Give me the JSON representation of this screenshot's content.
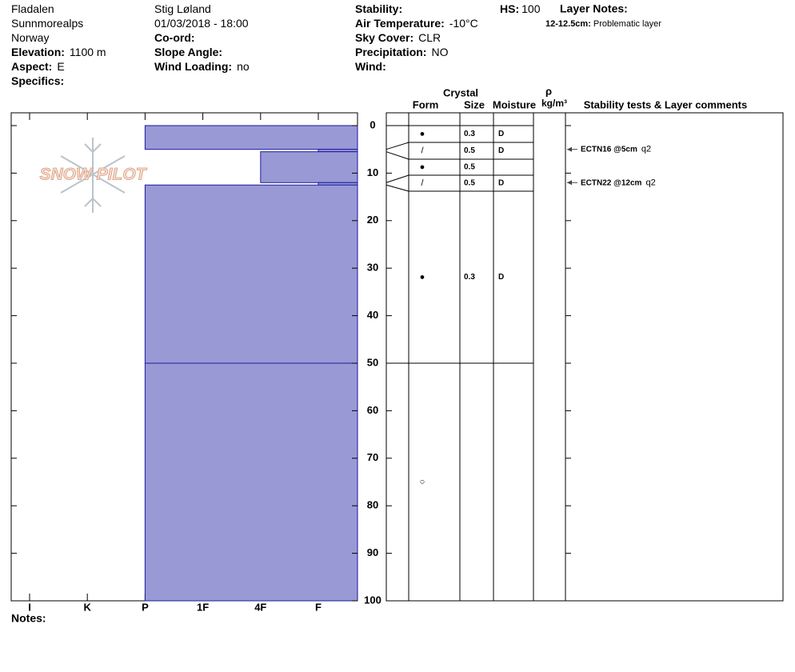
{
  "header": {
    "columns": [
      [
        {
          "value": "Fladalen"
        },
        {
          "value": "Sunnmorealps"
        },
        {
          "value": "Norway"
        },
        {
          "label": "Elevation:",
          "value": "1100 m"
        },
        {
          "label": "Aspect:",
          "value": "E"
        },
        {
          "label": "Specifics:"
        }
      ],
      [
        {
          "value": "Stig Løland"
        },
        {
          "value": "01/03/2018 - 18:00"
        },
        {
          "label": "Co-ord:"
        },
        {
          "label": "Slope Angle:"
        },
        {
          "label": "Wind Loading:",
          "value": "no"
        }
      ],
      [
        {
          "label": "Stability:"
        },
        {
          "label": "Air Temperature:",
          "value": "-10°C"
        },
        {
          "label": "Sky Cover:",
          "value": "CLR"
        },
        {
          "label": "Precipitation:",
          "value": "NO"
        },
        {
          "label": "Wind:"
        }
      ]
    ],
    "hs": {
      "label": "HS:",
      "value": 100
    },
    "layer_notes": {
      "title": "Layer Notes:",
      "items": [
        {
          "depth": "12-12.5cm:",
          "text": "Problematic layer"
        }
      ]
    }
  },
  "logo": "SNOW PILOT",
  "profile": {
    "depth_lim": [
      0,
      100
    ],
    "depth_ticks": [
      0,
      10,
      20,
      30,
      40,
      50,
      60,
      70,
      80,
      90,
      100
    ],
    "hardness_scale": [
      "I",
      "K",
      "P",
      "1F",
      "4F",
      "F"
    ],
    "layers": [
      {
        "top": 0,
        "bottom": 5,
        "hardness": "P",
        "form": "●",
        "size": 0.3,
        "moisture": "D"
      },
      {
        "top": 5,
        "bottom": 5.5,
        "hardness": "F",
        "form": "/",
        "size": 0.5,
        "moisture": "D"
      },
      {
        "top": 5.5,
        "bottom": 12,
        "hardness": "4F",
        "form": "●",
        "size": 0.5
      },
      {
        "top": 12,
        "bottom": 12.5,
        "hardness": "F",
        "form": "/",
        "size": 0.5,
        "moisture": "D"
      },
      {
        "top": 12.5,
        "bottom": 50,
        "hardness": "P",
        "form": "●",
        "size": 0.3,
        "moisture": "D"
      },
      {
        "top": 50,
        "bottom": 100,
        "hardness": "P",
        "form": "○"
      }
    ]
  },
  "columns": {
    "crystal": "Crystal",
    "form": "Form",
    "size": "Size",
    "moisture": "Moisture",
    "density": "ρ",
    "density_unit": "kg/m³",
    "comments": "Stability tests & Layer comments"
  },
  "tests": [
    {
      "depth": 5,
      "result": "ECTN16 @5cm",
      "quality": "q2"
    },
    {
      "depth": 12,
      "result": "ECTN22 @12cm",
      "quality": "q2"
    }
  ],
  "notes_label": "Notes:"
}
